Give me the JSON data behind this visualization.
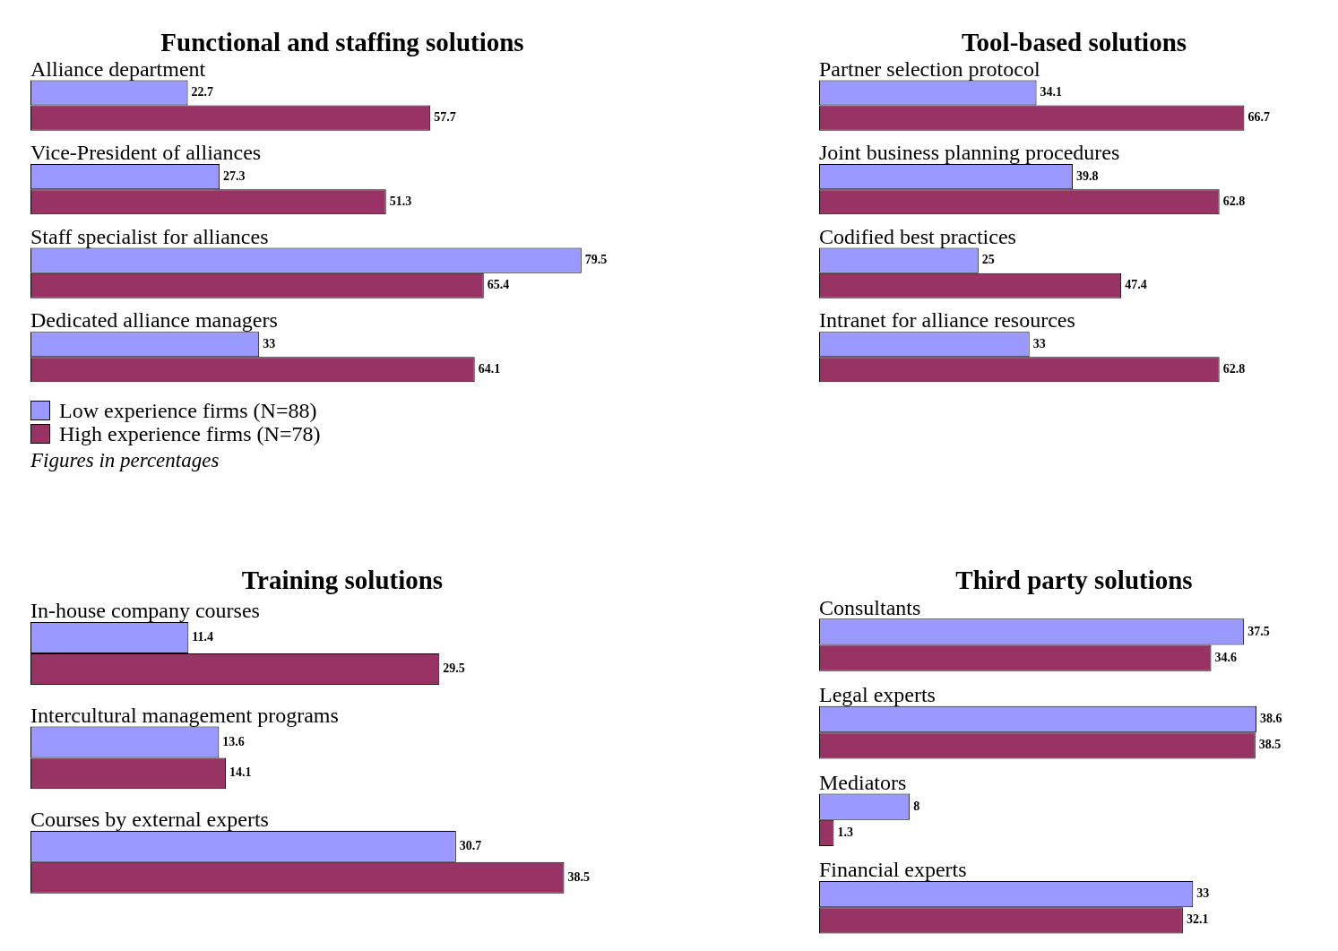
{
  "chart_data": [
    {
      "type": "bar",
      "orientation": "horizontal",
      "title": "Functional and staffing solutions",
      "categories": [
        "Alliance department",
        "Vice-President of alliances",
        "Staff specialist for alliances",
        "Dedicated alliance managers"
      ],
      "series": [
        {
          "name": "Low experience firms (N=88)",
          "color": "#9999ff",
          "values": [
            22.7,
            27.3,
            79.5,
            33
          ]
        },
        {
          "name": "High experience firms (N=78)",
          "color": "#993366",
          "values": [
            57.7,
            51.3,
            65.4,
            64.1
          ]
        }
      ],
      "data_labels": true,
      "legend": "bottom left",
      "annotations": [
        "Figures in percentages"
      ]
    },
    {
      "type": "bar",
      "orientation": "horizontal",
      "title": "Tool-based solutions",
      "categories": [
        "Partner selection protocol",
        "Joint business planning procedures",
        "Codified best practices",
        "Intranet for alliance resources"
      ],
      "series": [
        {
          "color": "#9999ff",
          "values": [
            34.1,
            39.8,
            25,
            33
          ]
        },
        {
          "color": "#993366",
          "values": [
            66.7,
            62.8,
            47.4,
            62.8
          ]
        }
      ],
      "data_labels": true
    },
    {
      "type": "bar",
      "orientation": "horizontal",
      "title": "Training solutions",
      "categories": [
        "In-house company courses",
        "Intercultural management programs",
        "Courses by external experts"
      ],
      "series": [
        {
          "color": "#9999ff",
          "values": [
            11.4,
            13.6,
            30.7
          ]
        },
        {
          "color": "#993366",
          "values": [
            29.5,
            14.1,
            38.5
          ]
        }
      ],
      "data_labels": true
    },
    {
      "type": "bar",
      "orientation": "horizontal",
      "title": "Third party solutions",
      "categories": [
        "Consultants",
        "Legal experts",
        "Mediators",
        "Financial experts"
      ],
      "series": [
        {
          "color": "#9999ff",
          "values": [
            37.5,
            38.6,
            8,
            33
          ]
        },
        {
          "color": "#993366",
          "values": [
            34.6,
            38.5,
            1.3,
            32.1
          ]
        }
      ],
      "data_labels": true
    }
  ]
}
